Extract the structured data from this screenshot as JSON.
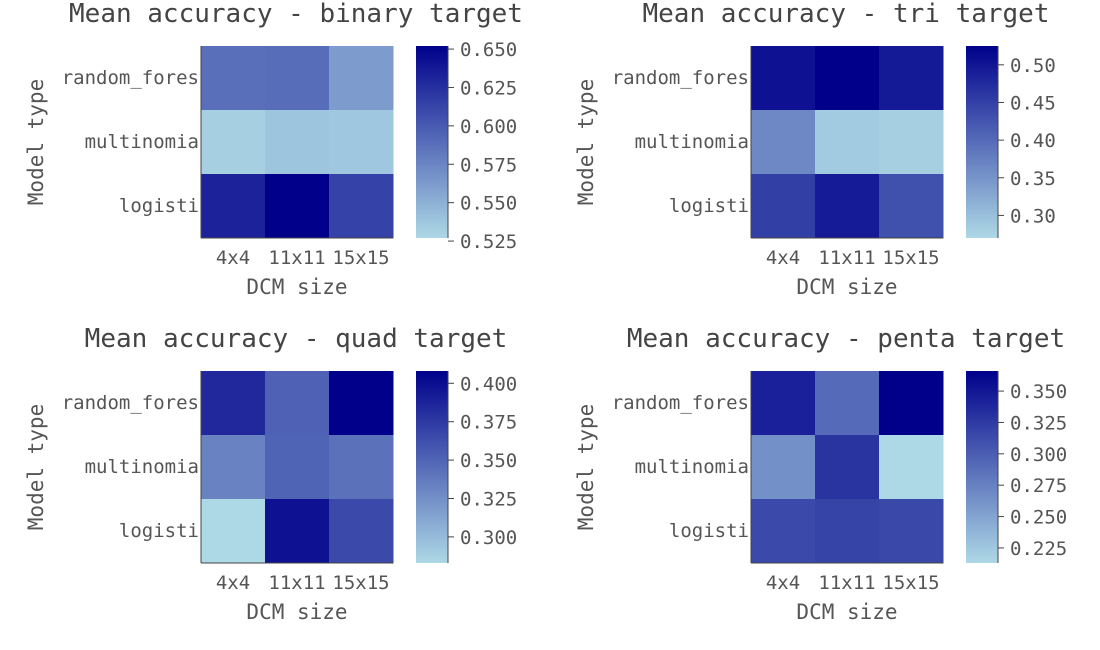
{
  "chart_data": [
    {
      "type": "heatmap",
      "title": "Mean accuracy - binary target",
      "xlabel": "DCM size",
      "ylabel": "Model type",
      "x_categories": [
        "4x4",
        "11x11",
        "15x15"
      ],
      "y_categories": [
        "random_forest",
        "multinomialNB",
        "logistic"
      ],
      "y_tick_display": [
        "random_fores",
        "multinomia",
        "logisti"
      ],
      "values": [
        [
          0.588,
          0.589,
          0.562
        ],
        [
          0.532,
          0.538,
          0.537
        ],
        [
          0.632,
          0.652,
          0.614
        ]
      ],
      "colorbar": {
        "range": [
          0.527,
          0.652
        ],
        "ticks": [
          0.525,
          0.55,
          0.575,
          0.6,
          0.625,
          0.65
        ],
        "tick_labels": [
          "0.525",
          "0.550",
          "0.575",
          "0.600",
          "0.625",
          "0.650"
        ]
      }
    },
    {
      "type": "heatmap",
      "title": "Mean accuracy - tri target",
      "xlabel": "DCM size",
      "ylabel": "Model type",
      "x_categories": [
        "4x4",
        "11x11",
        "15x15"
      ],
      "y_categories": [
        "random_forest",
        "multinomialNB",
        "logistic"
      ],
      "y_tick_display": [
        "random_fores",
        "multinomia",
        "logisti"
      ],
      "values": [
        [
          0.505,
          0.526,
          0.495
        ],
        [
          0.364,
          0.286,
          0.28
        ],
        [
          0.451,
          0.494,
          0.43
        ]
      ],
      "colorbar": {
        "range": [
          0.27,
          0.525
        ],
        "ticks": [
          0.3,
          0.35,
          0.4,
          0.45,
          0.5
        ],
        "tick_labels": [
          "0.30",
          "0.35",
          "0.40",
          "0.45",
          "0.50"
        ]
      }
    },
    {
      "type": "heatmap",
      "title": "Mean accuracy - quad target",
      "xlabel": "DCM size",
      "ylabel": "Model type",
      "x_categories": [
        "4x4",
        "11x11",
        "15x15"
      ],
      "y_categories": [
        "random_forest",
        "multinomialNB",
        "logistic"
      ],
      "y_tick_display": [
        "random_fores",
        "multinomia",
        "logisti"
      ],
      "values": [
        [
          0.385,
          0.352,
          0.408
        ],
        [
          0.332,
          0.35,
          0.342
        ],
        [
          0.283,
          0.398,
          0.366
        ]
      ],
      "colorbar": {
        "range": [
          0.283,
          0.408
        ],
        "ticks": [
          0.3,
          0.325,
          0.35,
          0.375,
          0.4
        ],
        "tick_labels": [
          "0.300",
          "0.325",
          "0.350",
          "0.375",
          "0.400"
        ]
      }
    },
    {
      "type": "heatmap",
      "title": "Mean accuracy - penta target",
      "xlabel": "DCM size",
      "ylabel": "Model type",
      "x_categories": [
        "4x4",
        "11x11",
        "15x15"
      ],
      "y_categories": [
        "random_forest",
        "multinomialNB",
        "logistic"
      ],
      "y_tick_display": [
        "random_fores",
        "multinomia",
        "logisti"
      ],
      "values": [
        [
          0.343,
          0.291,
          0.366
        ],
        [
          0.264,
          0.329,
          0.213
        ],
        [
          0.314,
          0.318,
          0.315
        ]
      ],
      "colorbar": {
        "range": [
          0.213,
          0.366
        ],
        "ticks": [
          0.225,
          0.25,
          0.275,
          0.3,
          0.325,
          0.35
        ],
        "tick_labels": [
          "0.225",
          "0.250",
          "0.275",
          "0.300",
          "0.325",
          "0.350"
        ]
      }
    }
  ],
  "colormap": {
    "low": "#add8e6",
    "high": "#00008b"
  }
}
